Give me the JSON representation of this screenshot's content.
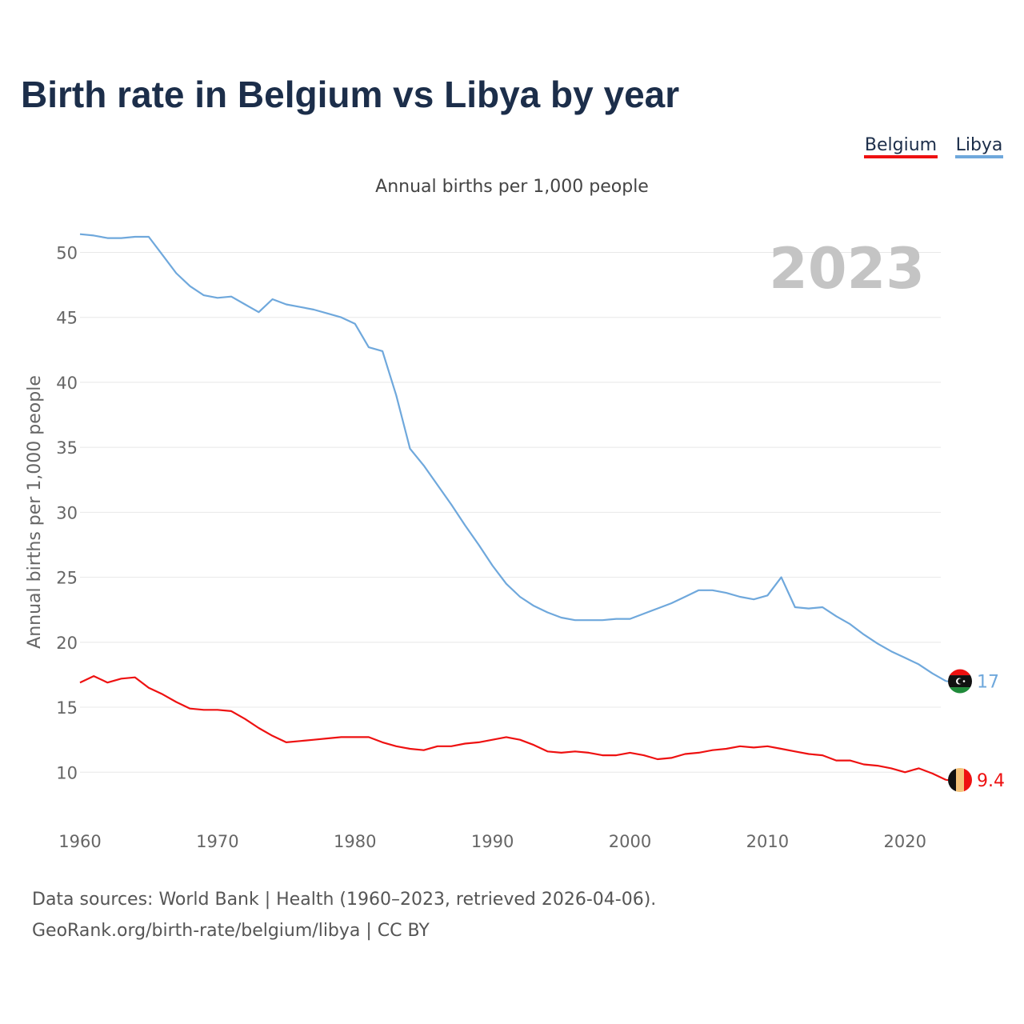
{
  "title": "Birth rate in Belgium vs Libya by year",
  "subtitle": "Annual births per 1,000 people",
  "legend": [
    {
      "label": "Belgium",
      "color": "#ee1111"
    },
    {
      "label": "Libya",
      "color": "#6fa8dc"
    }
  ],
  "year_badge": "2023",
  "source_lines": [
    "Data sources: World Bank | Health (1960–2023, retrieved 2026-04-06).",
    "GeoRank.org/birth-rate/belgium/libya | CC BY"
  ],
  "chart_data": {
    "type": "line",
    "title": "Birth rate in Belgium vs Libya by year",
    "subtitle": "Annual births per 1,000 people",
    "xlabel": "",
    "ylabel": "Annual births per 1,000 people",
    "xlim": [
      1960,
      2024
    ],
    "ylim": [
      7,
      52
    ],
    "xticks": [
      1960,
      1970,
      1980,
      1990,
      2000,
      2010,
      2020
    ],
    "yticks": [
      10,
      15,
      20,
      25,
      30,
      35,
      40,
      45,
      50
    ],
    "grid": true,
    "legend_position": "top-right",
    "x": [
      1960,
      1961,
      1962,
      1963,
      1964,
      1965,
      1966,
      1967,
      1968,
      1969,
      1970,
      1971,
      1972,
      1973,
      1974,
      1975,
      1976,
      1977,
      1978,
      1979,
      1980,
      1981,
      1982,
      1983,
      1984,
      1985,
      1986,
      1987,
      1988,
      1989,
      1990,
      1991,
      1992,
      1993,
      1994,
      1995,
      1996,
      1997,
      1998,
      1999,
      2000,
      2001,
      2002,
      2003,
      2004,
      2005,
      2006,
      2007,
      2008,
      2009,
      2010,
      2011,
      2012,
      2013,
      2014,
      2015,
      2016,
      2017,
      2018,
      2019,
      2020,
      2021,
      2022,
      2023
    ],
    "series": [
      {
        "name": "Belgium",
        "color": "#ee1111",
        "end_label": "9.4",
        "flag": "belgium",
        "values": [
          16.9,
          17.4,
          16.9,
          17.2,
          17.3,
          16.5,
          16.0,
          15.4,
          14.9,
          14.8,
          14.8,
          14.7,
          14.1,
          13.4,
          12.8,
          12.3,
          12.4,
          12.5,
          12.6,
          12.7,
          12.7,
          12.7,
          12.3,
          12.0,
          11.8,
          11.7,
          12.0,
          12.0,
          12.2,
          12.3,
          12.5,
          12.7,
          12.5,
          12.1,
          11.6,
          11.5,
          11.6,
          11.5,
          11.3,
          11.3,
          11.5,
          11.3,
          11.0,
          11.1,
          11.4,
          11.5,
          11.7,
          11.8,
          12.0,
          11.9,
          12.0,
          11.8,
          11.6,
          11.4,
          11.3,
          10.9,
          10.9,
          10.6,
          10.5,
          10.3,
          10.0,
          10.3,
          9.9,
          9.4
        ]
      },
      {
        "name": "Libya",
        "color": "#6fa8dc",
        "end_label": "17",
        "flag": "libya",
        "values": [
          51.4,
          51.3,
          51.1,
          51.1,
          51.2,
          51.2,
          49.8,
          48.4,
          47.4,
          46.7,
          46.5,
          46.6,
          46.0,
          45.4,
          46.4,
          46.0,
          45.8,
          45.6,
          45.3,
          45.0,
          44.5,
          42.7,
          42.4,
          39.0,
          34.9,
          33.6,
          32.1,
          30.6,
          29.0,
          27.5,
          25.9,
          24.5,
          23.5,
          22.8,
          22.3,
          21.9,
          21.7,
          21.7,
          21.7,
          21.8,
          21.8,
          22.2,
          22.6,
          23.0,
          23.5,
          24.0,
          24.0,
          23.8,
          23.5,
          23.3,
          23.6,
          25.0,
          22.7,
          22.6,
          22.7,
          22.0,
          21.4,
          20.6,
          19.9,
          19.3,
          18.8,
          18.3,
          17.6,
          17.0
        ]
      }
    ]
  }
}
